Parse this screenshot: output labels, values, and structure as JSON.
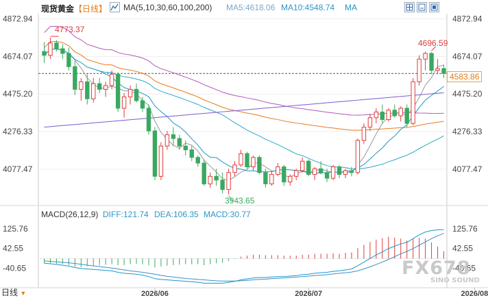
{
  "header": {
    "symbol": "现货黄金",
    "period": "【日线】",
    "ma_label": "MA(5,10,30,60,100,200)",
    "ma5": "MA5:4618.06",
    "ma10": "MA10:4548.74",
    "ma_more": "MA"
  },
  "macd": {
    "title": "MACD(26,12,9)",
    "diff": "DIFF:121.74",
    "dea": "DEA:106.35",
    "macd": "MACD:30.77"
  },
  "price_axis": [
    "4872.94",
    "4674.07",
    "4475.20",
    "4276.33",
    "4077.47"
  ],
  "current_price": "4583.86",
  "macd_axis": [
    "125.76",
    "42.55",
    "-40.65"
  ],
  "x_axis": [
    "2026/06",
    "2026/07",
    "2026/08"
  ],
  "annotations": {
    "high": "4773.37",
    "low": "3943.65",
    "recent_high": "4696.59"
  },
  "footer": {
    "period_tab": "日线"
  },
  "watermark": {
    "main": "FX678",
    "sub": "SINO SOUND"
  },
  "colors": {
    "up": "#e03a3a",
    "down": "#3aa860",
    "ma5": "#999999",
    "ma10": "#1a96c8",
    "ma30": "#2aa8c8",
    "ma60": "#b058b8",
    "ma100": "#e87a1a",
    "ma200": "#7a5ad0",
    "dea": "#3c8ec8"
  },
  "chart_data": {
    "type": "candlestick",
    "ylim": [
      3900,
      4900
    ],
    "price_ticks": [
      4872.94,
      4674.07,
      4475.2,
      4276.33,
      4077.47
    ],
    "current_price": 4583.86,
    "candles": [
      [
        4700,
        4750,
        4640,
        4680
      ],
      [
        4680,
        4773,
        4660,
        4745
      ],
      [
        4745,
        4760,
        4700,
        4715
      ],
      [
        4715,
        4740,
        4660,
        4690
      ],
      [
        4690,
        4720,
        4600,
        4620
      ],
      [
        4620,
        4650,
        4470,
        4500
      ],
      [
        4500,
        4560,
        4440,
        4540
      ],
      [
        4540,
        4580,
        4420,
        4450
      ],
      [
        4450,
        4560,
        4430,
        4530
      ],
      [
        4530,
        4560,
        4480,
        4500
      ],
      [
        4500,
        4540,
        4460,
        4520
      ],
      [
        4520,
        4600,
        4500,
        4580
      ],
      [
        4580,
        4590,
        4380,
        4400
      ],
      [
        4400,
        4480,
        4350,
        4460
      ],
      [
        4460,
        4520,
        4420,
        4500
      ],
      [
        4500,
        4530,
        4430,
        4440
      ],
      [
        4440,
        4460,
        4380,
        4400
      ],
      [
        4400,
        4420,
        4260,
        4280
      ],
      [
        4280,
        4300,
        4020,
        4040
      ],
      [
        4040,
        4220,
        4020,
        4200
      ],
      [
        4200,
        4280,
        4180,
        4260
      ],
      [
        4260,
        4300,
        4200,
        4240
      ],
      [
        4240,
        4260,
        4180,
        4200
      ],
      [
        4200,
        4230,
        4150,
        4180
      ],
      [
        4180,
        4200,
        4120,
        4140
      ],
      [
        4140,
        4150,
        4090,
        4110
      ],
      [
        4110,
        4130,
        3990,
        4000
      ],
      [
        4000,
        4060,
        3980,
        4040
      ],
      [
        4040,
        4080,
        3990,
        4020
      ],
      [
        4020,
        4060,
        3950,
        3970
      ],
      [
        3970,
        4080,
        3944,
        4060
      ],
      [
        4060,
        4120,
        4040,
        4100
      ],
      [
        4100,
        4180,
        4090,
        4160
      ],
      [
        4160,
        4170,
        4080,
        4090
      ],
      [
        4090,
        4150,
        4070,
        4140
      ],
      [
        4140,
        4150,
        4050,
        4060
      ],
      [
        4060,
        4080,
        3980,
        4000
      ],
      [
        4000,
        4070,
        3990,
        4050
      ],
      [
        4050,
        4110,
        4040,
        4090
      ],
      [
        4090,
        4100,
        3990,
        4010
      ],
      [
        4010,
        4050,
        3990,
        4040
      ],
      [
        4040,
        4080,
        4020,
        4070
      ],
      [
        4070,
        4140,
        4060,
        4120
      ],
      [
        4120,
        4130,
        4040,
        4050
      ],
      [
        4050,
        4090,
        4020,
        4080
      ],
      [
        4080,
        4120,
        4050,
        4060
      ],
      [
        4060,
        4080,
        4010,
        4030
      ],
      [
        4030,
        4100,
        4020,
        4090
      ],
      [
        4090,
        4100,
        4030,
        4050
      ],
      [
        4050,
        4080,
        4030,
        4070
      ],
      [
        4070,
        4090,
        4040,
        4060
      ],
      [
        4060,
        4240,
        4050,
        4230
      ],
      [
        4230,
        4320,
        4210,
        4300
      ],
      [
        4300,
        4370,
        4280,
        4350
      ],
      [
        4350,
        4400,
        4320,
        4380
      ],
      [
        4380,
        4420,
        4320,
        4340
      ],
      [
        4340,
        4400,
        4330,
        4390
      ],
      [
        4390,
        4420,
        4350,
        4360
      ],
      [
        4360,
        4410,
        4330,
        4400
      ],
      [
        4400,
        4420,
        4300,
        4320
      ],
      [
        4320,
        4560,
        4310,
        4540
      ],
      [
        4540,
        4680,
        4520,
        4660
      ],
      [
        4660,
        4700,
        4600,
        4690
      ],
      [
        4690,
        4697,
        4580,
        4600
      ],
      [
        4600,
        4660,
        4580,
        4610
      ],
      [
        4610,
        4630,
        4560,
        4584
      ]
    ],
    "macd_ticks": [
      125.76,
      42.55,
      -40.65
    ],
    "macd_ylim": [
      -100,
      160
    ],
    "diff": [
      -20,
      -22,
      -25,
      -28,
      -32,
      -38,
      -42,
      -44,
      -46,
      -48,
      -50,
      -52,
      -58,
      -62,
      -64,
      -66,
      -70,
      -76,
      -85,
      -88,
      -90,
      -92,
      -94,
      -96,
      -98,
      -100,
      -104,
      -104,
      -104,
      -104,
      -100,
      -96,
      -90,
      -86,
      -82,
      -80,
      -80,
      -78,
      -76,
      -76,
      -74,
      -72,
      -68,
      -66,
      -62,
      -60,
      -58,
      -54,
      -52,
      -48,
      -44,
      -30,
      -15,
      0,
      15,
      28,
      42,
      52,
      62,
      68,
      84,
      100,
      112,
      118,
      121,
      121.74
    ],
    "dea": [
      -10,
      -12,
      -14,
      -16,
      -18,
      -21,
      -24,
      -28,
      -31,
      -34,
      -37,
      -40,
      -44,
      -48,
      -52,
      -55,
      -58,
      -62,
      -66,
      -71,
      -75,
      -78,
      -81,
      -84,
      -86,
      -88,
      -90,
      -92,
      -94,
      -95,
      -95,
      -95,
      -94,
      -92,
      -90,
      -88,
      -87,
      -85,
      -83,
      -82,
      -80,
      -78,
      -76,
      -74,
      -72,
      -70,
      -68,
      -65,
      -62,
      -60,
      -57,
      -52,
      -44,
      -35,
      -25,
      -15,
      -4,
      8,
      20,
      30,
      42,
      56,
      70,
      84,
      96,
      106.35
    ],
    "x_labels": [
      "2026/06",
      "2026/07",
      "2026/08"
    ],
    "x_label_index": [
      18,
      43,
      70
    ]
  }
}
